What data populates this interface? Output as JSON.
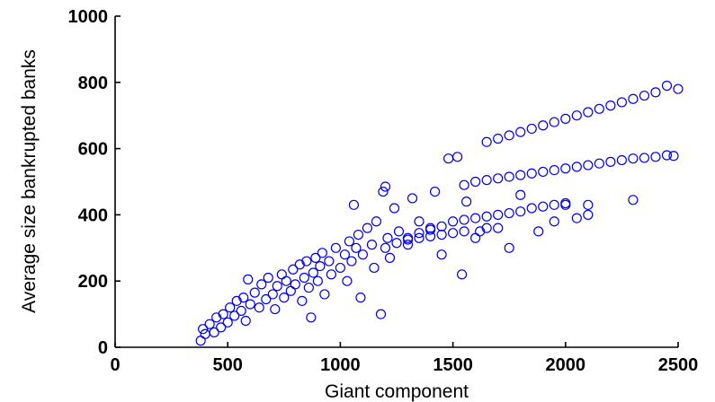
{
  "chart_data": {
    "type": "scatter",
    "title": "",
    "xlabel": "Giant component",
    "ylabel": "Average size bankrupted banks",
    "xlim": [
      0,
      2500
    ],
    "ylim": [
      0,
      1000
    ],
    "xticks": [
      0,
      500,
      1000,
      1500,
      2000,
      2500
    ],
    "yticks": [
      0,
      200,
      400,
      600,
      800,
      1000
    ],
    "xtick_labels": [
      "0",
      "500",
      "1000",
      "1500",
      "2000",
      "2500"
    ],
    "ytick_labels": [
      "0",
      "200",
      "400",
      "600",
      "800",
      "1000"
    ],
    "grid": false,
    "legend": "none",
    "marker": "open-circle",
    "color": "#0000ee",
    "series": [
      {
        "values": [
          [
            380,
            20
          ],
          [
            390,
            55
          ],
          [
            400,
            40
          ],
          [
            420,
            70
          ],
          [
            440,
            45
          ],
          [
            450,
            90
          ],
          [
            470,
            60
          ],
          [
            480,
            100
          ],
          [
            500,
            75
          ],
          [
            510,
            120
          ],
          [
            530,
            95
          ],
          [
            540,
            140
          ],
          [
            560,
            110
          ],
          [
            570,
            150
          ],
          [
            580,
            80
          ],
          [
            590,
            205
          ],
          [
            600,
            130
          ],
          [
            620,
            165
          ],
          [
            640,
            120
          ],
          [
            650,
            190
          ],
          [
            670,
            145
          ],
          [
            680,
            210
          ],
          [
            700,
            160
          ],
          [
            710,
            115
          ],
          [
            720,
            185
          ],
          [
            740,
            220
          ],
          [
            750,
            150
          ],
          [
            760,
            200
          ],
          [
            780,
            170
          ],
          [
            790,
            235
          ],
          [
            800,
            190
          ],
          [
            820,
            250
          ],
          [
            830,
            140
          ],
          [
            840,
            210
          ],
          [
            850,
            260
          ],
          [
            860,
            180
          ],
          [
            870,
            90
          ],
          [
            880,
            225
          ],
          [
            890,
            270
          ],
          [
            900,
            200
          ],
          [
            910,
            245
          ],
          [
            920,
            285
          ],
          [
            930,
            160
          ],
          [
            950,
            260
          ],
          [
            960,
            220
          ],
          [
            980,
            300
          ],
          [
            1000,
            240
          ],
          [
            1020,
            280
          ],
          [
            1030,
            200
          ],
          [
            1040,
            320
          ],
          [
            1050,
            260
          ],
          [
            1060,
            430
          ],
          [
            1070,
            300
          ],
          [
            1080,
            340
          ],
          [
            1090,
            150
          ],
          [
            1100,
            280
          ],
          [
            1120,
            360
          ],
          [
            1140,
            310
          ],
          [
            1150,
            240
          ],
          [
            1160,
            380
          ],
          [
            1180,
            100
          ],
          [
            1190,
            470
          ],
          [
            1200,
            485
          ],
          [
            1210,
            330
          ],
          [
            1220,
            270
          ],
          [
            1240,
            420
          ],
          [
            1260,
            350
          ],
          [
            1300,
            310
          ],
          [
            1320,
            450
          ],
          [
            1350,
            380
          ],
          [
            1400,
            360
          ],
          [
            1420,
            470
          ],
          [
            1450,
            280
          ],
          [
            1480,
            570
          ],
          [
            1520,
            575
          ],
          [
            1540,
            220
          ],
          [
            1560,
            440
          ],
          [
            1600,
            330
          ],
          [
            1650,
            360
          ],
          [
            1700,
            360
          ],
          [
            1750,
            300
          ],
          [
            1800,
            460
          ],
          [
            1880,
            350
          ],
          [
            1950,
            380
          ],
          [
            2000,
            430
          ],
          [
            2050,
            390
          ],
          [
            2100,
            400
          ],
          [
            2300,
            445
          ],
          [
            1550,
            490
          ],
          [
            1600,
            500
          ],
          [
            1650,
            505
          ],
          [
            1700,
            510
          ],
          [
            1750,
            515
          ],
          [
            1800,
            520
          ],
          [
            1850,
            525
          ],
          [
            1900,
            530
          ],
          [
            1950,
            535
          ],
          [
            2000,
            540
          ],
          [
            2050,
            545
          ],
          [
            2100,
            550
          ],
          [
            2150,
            555
          ],
          [
            2200,
            560
          ],
          [
            2250,
            565
          ],
          [
            2300,
            570
          ],
          [
            2350,
            572
          ],
          [
            2400,
            575
          ],
          [
            2450,
            580
          ],
          [
            2480,
            578
          ],
          [
            1300,
            330
          ],
          [
            1350,
            345
          ],
          [
            1400,
            355
          ],
          [
            1450,
            365
          ],
          [
            1500,
            380
          ],
          [
            1550,
            385
          ],
          [
            1600,
            390
          ],
          [
            1650,
            395
          ],
          [
            1700,
            400
          ],
          [
            1750,
            405
          ],
          [
            1800,
            410
          ],
          [
            1850,
            420
          ],
          [
            1900,
            425
          ],
          [
            1950,
            430
          ],
          [
            2000,
            435
          ],
          [
            2100,
            430
          ],
          [
            1200,
            300
          ],
          [
            1250,
            315
          ],
          [
            1300,
            325
          ],
          [
            1350,
            330
          ],
          [
            1400,
            335
          ],
          [
            1450,
            340
          ],
          [
            1500,
            345
          ],
          [
            1550,
            350
          ],
          [
            1620,
            350
          ],
          [
            1650,
            620
          ],
          [
            1700,
            630
          ],
          [
            1750,
            640
          ],
          [
            1800,
            650
          ],
          [
            1850,
            660
          ],
          [
            1900,
            670
          ],
          [
            1950,
            680
          ],
          [
            2000,
            690
          ],
          [
            2050,
            700
          ],
          [
            2100,
            710
          ],
          [
            2150,
            720
          ],
          [
            2200,
            730
          ],
          [
            2250,
            740
          ],
          [
            2300,
            750
          ],
          [
            2350,
            760
          ],
          [
            2400,
            770
          ],
          [
            2450,
            790
          ],
          [
            2500,
            780
          ]
        ]
      }
    ]
  }
}
